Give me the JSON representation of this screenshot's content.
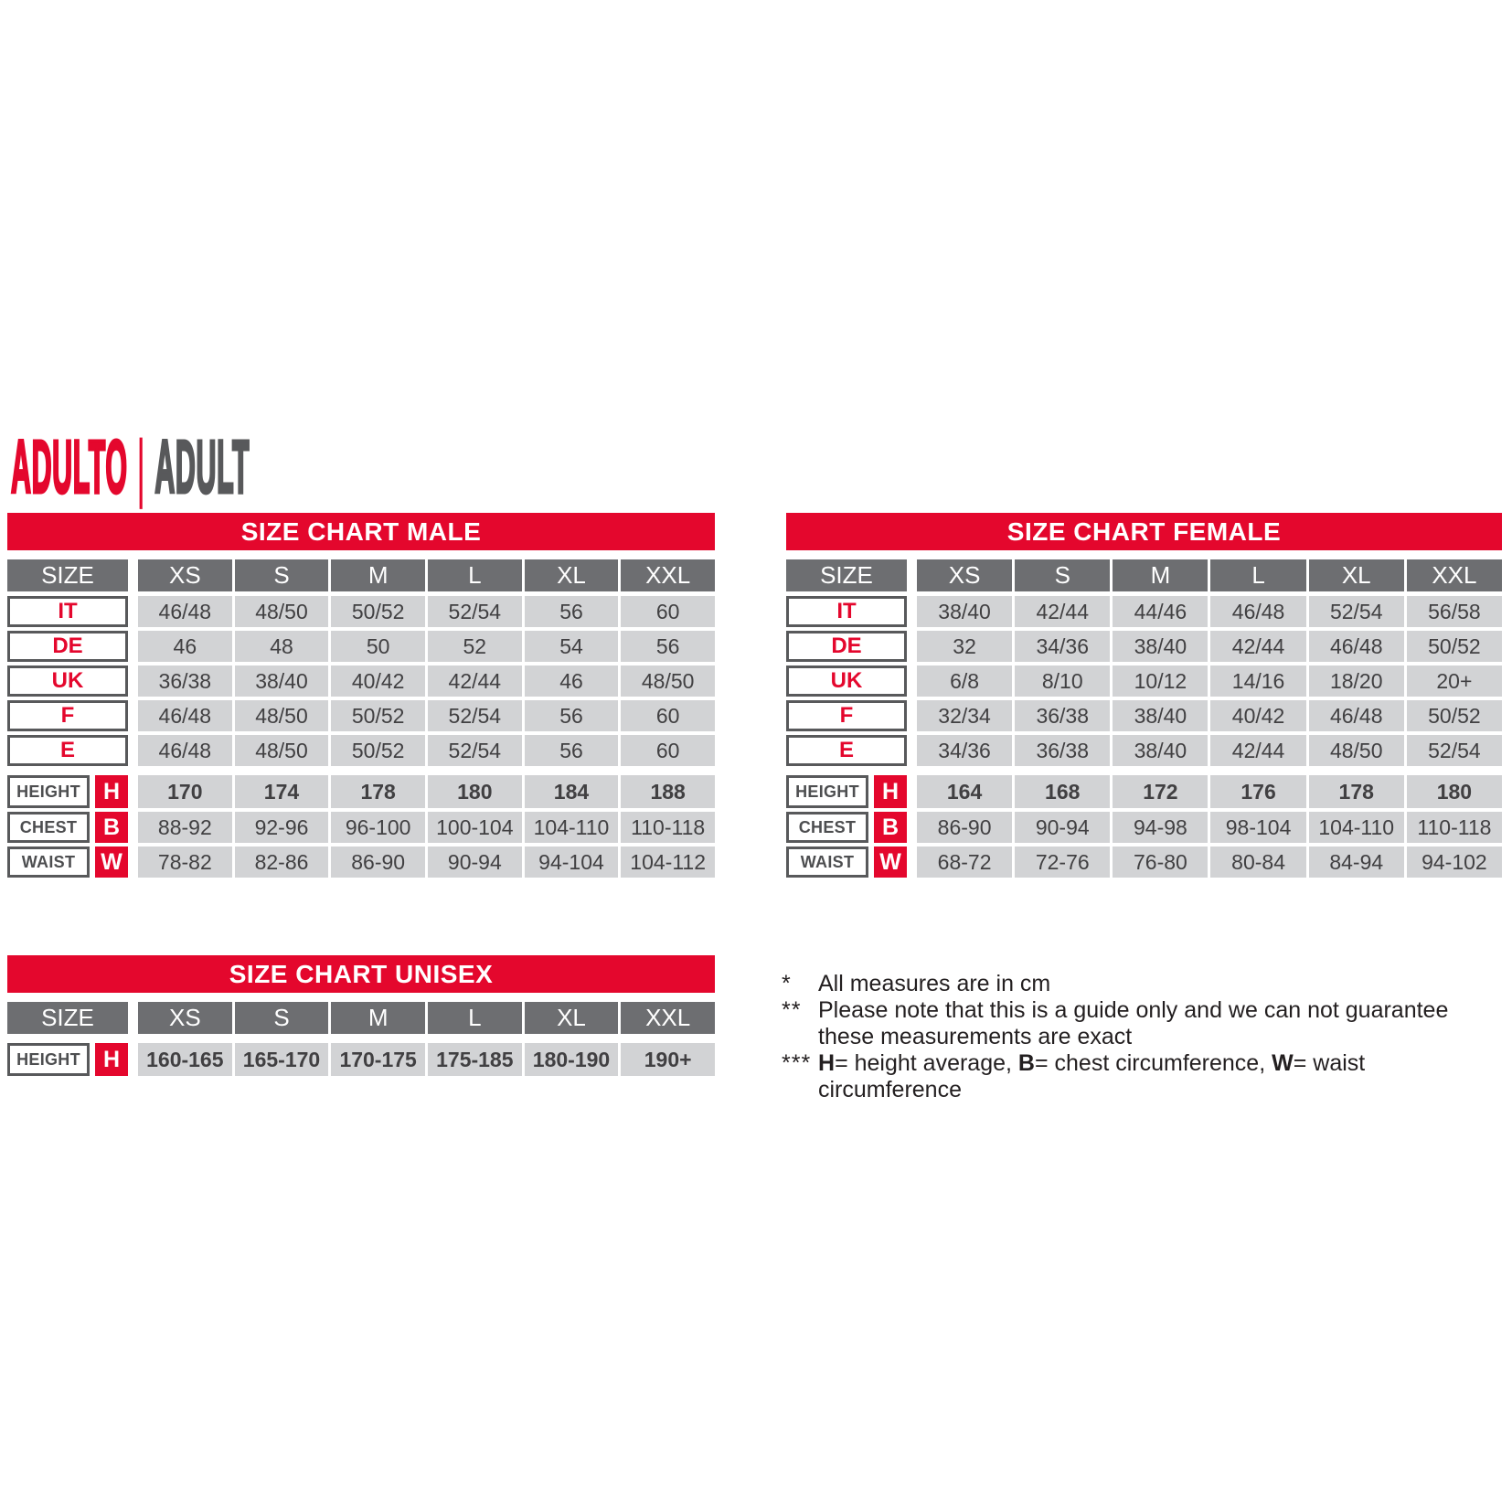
{
  "title": {
    "primary": "ADULTO",
    "separator": "|",
    "secondary": "ADULT"
  },
  "colors": {
    "red": "#e4072d",
    "dark_gray": "#6d6e71",
    "light_gray": "#d2d3d5",
    "border_gray": "#58595b",
    "text_dark": "#414042",
    "title_gray": "#58595b"
  },
  "tables": [
    {
      "id": "male",
      "title": "SIZE CHART MALE",
      "size_header": "SIZE",
      "columns": [
        "XS",
        "S",
        "M",
        "L",
        "XL",
        "XXL"
      ],
      "size_rows": [
        {
          "label": "IT",
          "values": [
            "46/48",
            "48/50",
            "50/52",
            "52/54",
            "56",
            "60"
          ]
        },
        {
          "label": "DE",
          "values": [
            "46",
            "48",
            "50",
            "52",
            "54",
            "56"
          ]
        },
        {
          "label": "UK",
          "values": [
            "36/38",
            "38/40",
            "40/42",
            "42/44",
            "46",
            "48/50"
          ]
        },
        {
          "label": "F",
          "values": [
            "46/48",
            "48/50",
            "50/52",
            "52/54",
            "56",
            "60"
          ]
        },
        {
          "label": "E",
          "values": [
            "46/48",
            "48/50",
            "50/52",
            "52/54",
            "56",
            "60"
          ]
        }
      ],
      "measure_rows": [
        {
          "label": "HEIGHT",
          "letter": "H",
          "bold_values": true,
          "values": [
            "170",
            "174",
            "178",
            "180",
            "184",
            "188"
          ]
        },
        {
          "label": "CHEST",
          "letter": "B",
          "bold_values": false,
          "values": [
            "88-92",
            "92-96",
            "96-100",
            "100-104",
            "104-110",
            "110-118"
          ]
        },
        {
          "label": "WAIST",
          "letter": "W",
          "bold_values": false,
          "values": [
            "78-82",
            "82-86",
            "86-90",
            "90-94",
            "94-104",
            "104-112"
          ]
        }
      ]
    },
    {
      "id": "female",
      "title": "SIZE CHART FEMALE",
      "size_header": "SIZE",
      "columns": [
        "XS",
        "S",
        "M",
        "L",
        "XL",
        "XXL"
      ],
      "size_rows": [
        {
          "label": "IT",
          "values": [
            "38/40",
            "42/44",
            "44/46",
            "46/48",
            "52/54",
            "56/58"
          ]
        },
        {
          "label": "DE",
          "values": [
            "32",
            "34/36",
            "38/40",
            "42/44",
            "46/48",
            "50/52"
          ]
        },
        {
          "label": "UK",
          "values": [
            "6/8",
            "8/10",
            "10/12",
            "14/16",
            "18/20",
            "20+"
          ]
        },
        {
          "label": "F",
          "values": [
            "32/34",
            "36/38",
            "38/40",
            "40/42",
            "46/48",
            "50/52"
          ]
        },
        {
          "label": "E",
          "values": [
            "34/36",
            "36/38",
            "38/40",
            "42/44",
            "48/50",
            "52/54"
          ]
        }
      ],
      "measure_rows": [
        {
          "label": "HEIGHT",
          "letter": "H",
          "bold_values": true,
          "values": [
            "164",
            "168",
            "172",
            "176",
            "178",
            "180"
          ]
        },
        {
          "label": "CHEST",
          "letter": "B",
          "bold_values": false,
          "values": [
            "86-90",
            "90-94",
            "94-98",
            "98-104",
            "104-110",
            "110-118"
          ]
        },
        {
          "label": "WAIST",
          "letter": "W",
          "bold_values": false,
          "values": [
            "68-72",
            "72-76",
            "76-80",
            "80-84",
            "84-94",
            "94-102"
          ]
        }
      ]
    },
    {
      "id": "unisex",
      "title": "SIZE CHART UNISEX",
      "size_header": "SIZE",
      "columns": [
        "XS",
        "S",
        "M",
        "L",
        "XL",
        "XXL"
      ],
      "size_rows": [],
      "measure_rows": [
        {
          "label": "HEIGHT",
          "letter": "H",
          "bold_values": true,
          "values": [
            "160-165",
            "165-170",
            "170-175",
            "175-185",
            "180-190",
            "190+"
          ]
        }
      ]
    }
  ],
  "footnotes": [
    {
      "marker": "*",
      "segments": [
        {
          "text": "All measures are in cm",
          "bold": false
        }
      ]
    },
    {
      "marker": "**",
      "segments": [
        {
          "text": "Please note that this is a guide only and we can not guarantee",
          "bold": false
        }
      ]
    },
    {
      "marker": "",
      "segments": [
        {
          "text": "these measurements are exact",
          "bold": false
        }
      ]
    },
    {
      "marker": "***",
      "segments": [
        {
          "text": "H",
          "bold": true
        },
        {
          "text": "= height average, ",
          "bold": false
        },
        {
          "text": "B",
          "bold": true
        },
        {
          "text": "= chest circumference, ",
          "bold": false
        },
        {
          "text": "W",
          "bold": true
        },
        {
          "text": "= waist circumference",
          "bold": false
        }
      ]
    }
  ]
}
